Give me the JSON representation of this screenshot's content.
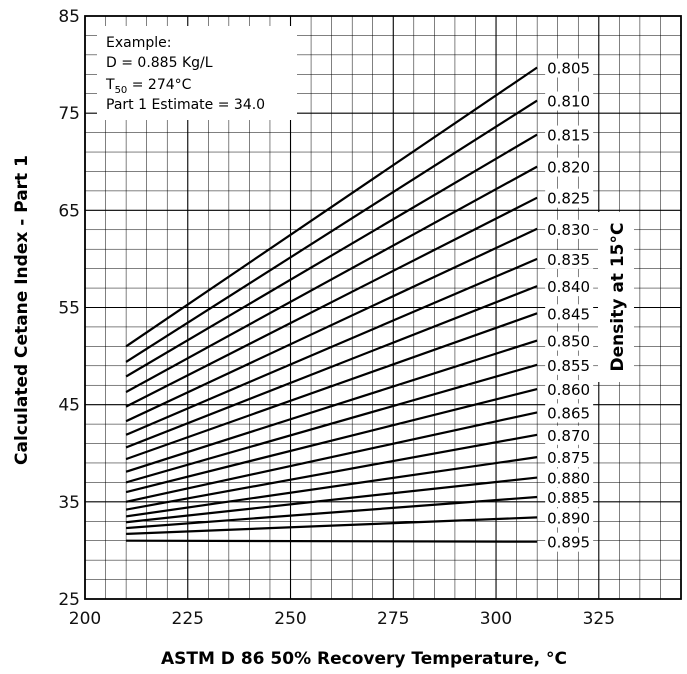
{
  "chart_data": {
    "type": "line",
    "title": "",
    "xlabel": "ASTM D 86 50% Recovery Temperature, °C",
    "ylabel": "Calculated Cetane Index - Part 1",
    "legend_title": "Density at 15°C",
    "xlim": [
      200,
      345
    ],
    "ylim": [
      25,
      85
    ],
    "xticks": [
      200,
      225,
      250,
      275,
      300,
      325
    ],
    "yticks": [
      25,
      35,
      45,
      55,
      65,
      75,
      85
    ],
    "grid": true,
    "x": [
      210,
      310
    ],
    "series": [
      {
        "name": "0.805",
        "values": [
          51.0,
          79.7
        ]
      },
      {
        "name": "0.810",
        "values": [
          49.4,
          76.3
        ]
      },
      {
        "name": "0.815",
        "values": [
          47.9,
          72.8
        ]
      },
      {
        "name": "0.820",
        "values": [
          46.3,
          69.5
        ]
      },
      {
        "name": "0.825",
        "values": [
          44.8,
          66.3
        ]
      },
      {
        "name": "0.830",
        "values": [
          43.3,
          63.1
        ]
      },
      {
        "name": "0.835",
        "values": [
          41.9,
          60.0
        ]
      },
      {
        "name": "0.840",
        "values": [
          40.6,
          57.2
        ]
      },
      {
        "name": "0.845",
        "values": [
          39.4,
          54.4
        ]
      },
      {
        "name": "0.850",
        "values": [
          38.1,
          51.6
        ]
      },
      {
        "name": "0.855",
        "values": [
          37.0,
          49.1
        ]
      },
      {
        "name": "0.860",
        "values": [
          36.0,
          46.6
        ]
      },
      {
        "name": "0.865",
        "values": [
          35.0,
          44.2
        ]
      },
      {
        "name": "0.870",
        "values": [
          34.2,
          41.9
        ]
      },
      {
        "name": "0.875",
        "values": [
          33.5,
          39.6
        ]
      },
      {
        "name": "0.880",
        "values": [
          32.9,
          37.5
        ]
      },
      {
        "name": "0.885",
        "values": [
          32.3,
          35.5
        ]
      },
      {
        "name": "0.890",
        "values": [
          31.7,
          33.4
        ]
      },
      {
        "name": "0.895",
        "values": [
          31.0,
          30.9
        ]
      }
    ],
    "annotation": {
      "heading": "Example:",
      "line1": "D = 0.885 Kg/L",
      "t_main": "T",
      "t_sub": "50",
      "t_rest": " = 274°C",
      "line3": "Part 1 Estimate = 34.0"
    }
  }
}
